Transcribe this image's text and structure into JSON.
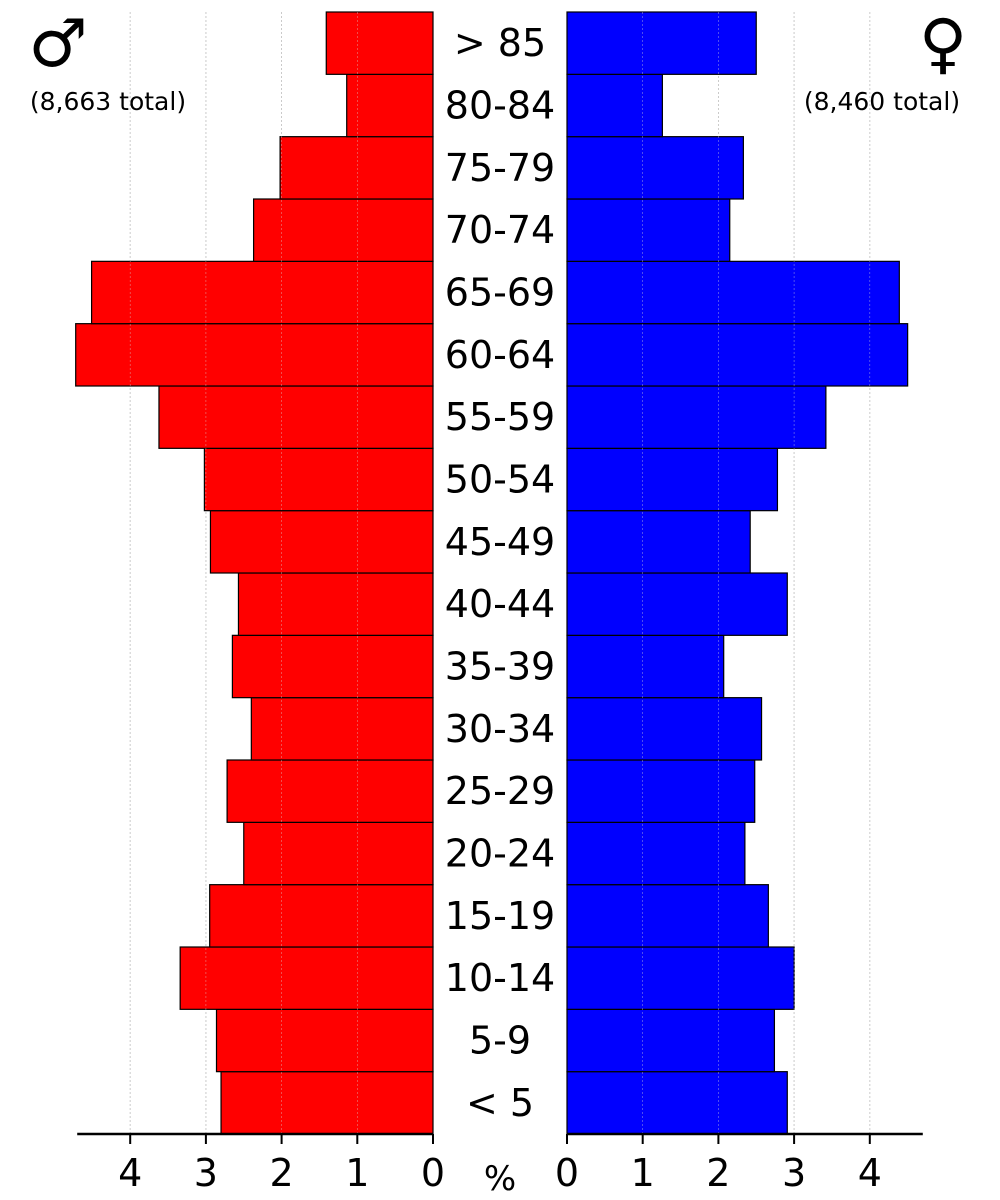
{
  "chart_data": {
    "type": "bar",
    "orientation": "horizontal-population-pyramid",
    "categories": [
      "< 5",
      "5-9",
      "10-14",
      "15-19",
      "20-24",
      "25-29",
      "30-34",
      "35-39",
      "40-44",
      "45-49",
      "50-54",
      "55-59",
      "60-64",
      "65-69",
      "70-74",
      "75-79",
      "80-84",
      "> 85"
    ],
    "series": [
      {
        "name": "male",
        "symbol": "♂",
        "total_label": "(8,663 total)",
        "color": "#ff0000",
        "values": [
          2.8,
          2.86,
          3.34,
          2.95,
          2.5,
          2.72,
          2.4,
          2.65,
          2.57,
          2.94,
          3.02,
          3.62,
          4.72,
          4.51,
          2.37,
          2.02,
          1.14,
          1.41
        ]
      },
      {
        "name": "female",
        "symbol": "♀",
        "total_label": "(8,460 total)",
        "color": "#0000ff",
        "values": [
          2.91,
          2.74,
          3.0,
          2.66,
          2.35,
          2.48,
          2.57,
          2.07,
          2.91,
          2.42,
          2.78,
          3.42,
          4.5,
          4.39,
          2.15,
          2.33,
          1.26,
          2.5
        ]
      }
    ],
    "xlabel": "%",
    "x_ticks": [
      0,
      1,
      2,
      3,
      4
    ],
    "xlim": [
      0,
      4.7
    ],
    "grid": "vertical dotted",
    "edge_color": "#000000"
  }
}
